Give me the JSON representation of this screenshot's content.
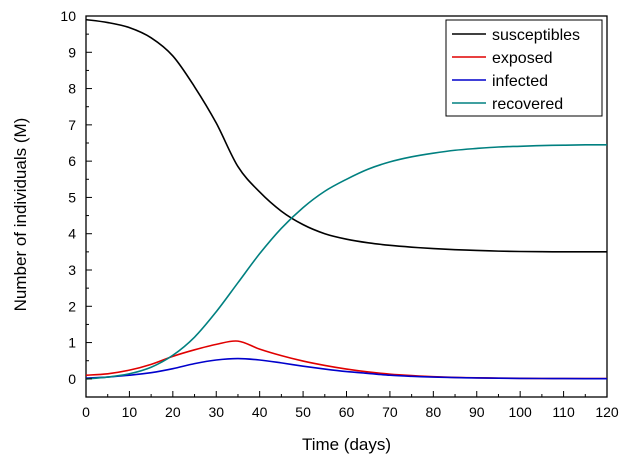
{
  "chart_data": {
    "type": "line",
    "title": "",
    "xlabel": "Time (days)",
    "ylabel": "Number of individuals (M)",
    "xlim": [
      0,
      120
    ],
    "ylim": [
      -0.5,
      10
    ],
    "xticks": [
      0,
      10,
      20,
      30,
      40,
      50,
      60,
      70,
      80,
      90,
      100,
      110,
      120
    ],
    "yticks": [
      0,
      1,
      2,
      3,
      4,
      5,
      6,
      7,
      8,
      9,
      10
    ],
    "grid": false,
    "legend_position": "top-right",
    "x": [
      0,
      5,
      10,
      15,
      20,
      25,
      30,
      35,
      40,
      45,
      50,
      55,
      60,
      65,
      70,
      75,
      80,
      85,
      90,
      95,
      100,
      105,
      110,
      115,
      120
    ],
    "series": [
      {
        "name": "susceptibles",
        "color": "#000000",
        "values": [
          9.9,
          9.82,
          9.68,
          9.4,
          8.9,
          8.05,
          7.05,
          5.85,
          5.15,
          4.62,
          4.25,
          4.0,
          3.85,
          3.75,
          3.68,
          3.63,
          3.59,
          3.56,
          3.54,
          3.52,
          3.51,
          3.505,
          3.5,
          3.5,
          3.5
        ]
      },
      {
        "name": "exposed",
        "color": "#e00000",
        "values": [
          0.1,
          0.14,
          0.24,
          0.4,
          0.62,
          0.8,
          0.95,
          1.04,
          0.82,
          0.64,
          0.49,
          0.37,
          0.27,
          0.19,
          0.13,
          0.09,
          0.06,
          0.04,
          0.03,
          0.02,
          0.015,
          0.01,
          0.01,
          0.01,
          0.01
        ]
      },
      {
        "name": "infected",
        "color": "#0000cc",
        "values": [
          0.02,
          0.05,
          0.1,
          0.17,
          0.28,
          0.42,
          0.52,
          0.56,
          0.52,
          0.44,
          0.35,
          0.27,
          0.2,
          0.15,
          0.1,
          0.07,
          0.05,
          0.035,
          0.025,
          0.018,
          0.013,
          0.01,
          0.008,
          0.006,
          0.005
        ]
      },
      {
        "name": "recovered",
        "color": "#008080",
        "values": [
          0.0,
          0.05,
          0.14,
          0.32,
          0.65,
          1.15,
          1.85,
          2.65,
          3.45,
          4.15,
          4.72,
          5.17,
          5.5,
          5.78,
          5.98,
          6.12,
          6.22,
          6.3,
          6.35,
          6.39,
          6.41,
          6.43,
          6.44,
          6.45,
          6.45
        ]
      }
    ]
  }
}
